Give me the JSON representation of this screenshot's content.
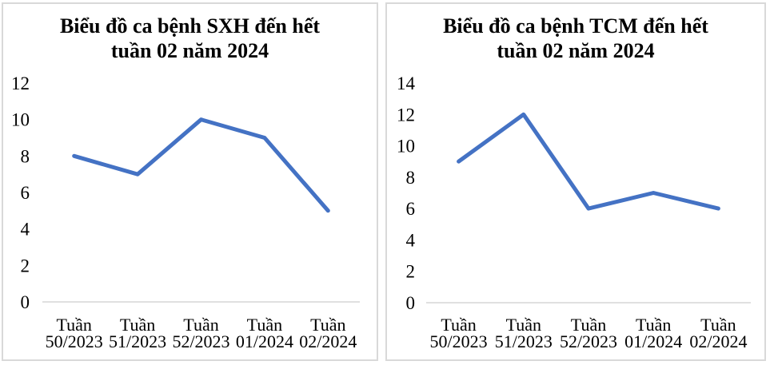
{
  "page": {
    "background": "#FFFFFF"
  },
  "colors": {
    "line": "#4472C4",
    "axis_line": "#D6D6D6",
    "panel_border": "#D9D9D9",
    "text": "#000000"
  },
  "chart_data": [
    {
      "type": "line",
      "title": "Biểu đồ ca bệnh SXH đến hết tuần 02 năm 2024",
      "title_lines": [
        "Biểu đồ ca bệnh SXH đến hết",
        "tuần 02 năm 2024"
      ],
      "categories": [
        "Tuần 50/2023",
        "Tuần 51/2023",
        "Tuần 52/2023",
        "Tuần 01/2024",
        "Tuần 02/2024"
      ],
      "values": [
        8,
        7,
        10,
        9,
        5
      ],
      "xlabel": "",
      "ylabel": "",
      "ylim": [
        0,
        12
      ],
      "ytick_step": 2,
      "yticks": [
        0,
        2,
        4,
        6,
        8,
        10,
        12
      ],
      "grid": false,
      "legend": "none",
      "line_color": "#4472C4"
    },
    {
      "type": "line",
      "title": "Biểu đồ ca bệnh TCM đến hết tuần 02 năm 2024",
      "title_lines": [
        "Biểu đồ ca bệnh TCM đến hết",
        "tuần 02 năm 2024"
      ],
      "categories": [
        "Tuần 50/2023",
        "Tuần 51/2023",
        "Tuần 52/2023",
        "Tuần 01/2024",
        "Tuần 02/2024"
      ],
      "values": [
        9,
        12,
        6,
        7,
        6
      ],
      "xlabel": "",
      "ylabel": "",
      "ylim": [
        0,
        14
      ],
      "ytick_step": 2,
      "yticks": [
        0,
        2,
        4,
        6,
        8,
        10,
        12,
        14
      ],
      "grid": false,
      "legend": "none",
      "line_color": "#4472C4"
    }
  ]
}
